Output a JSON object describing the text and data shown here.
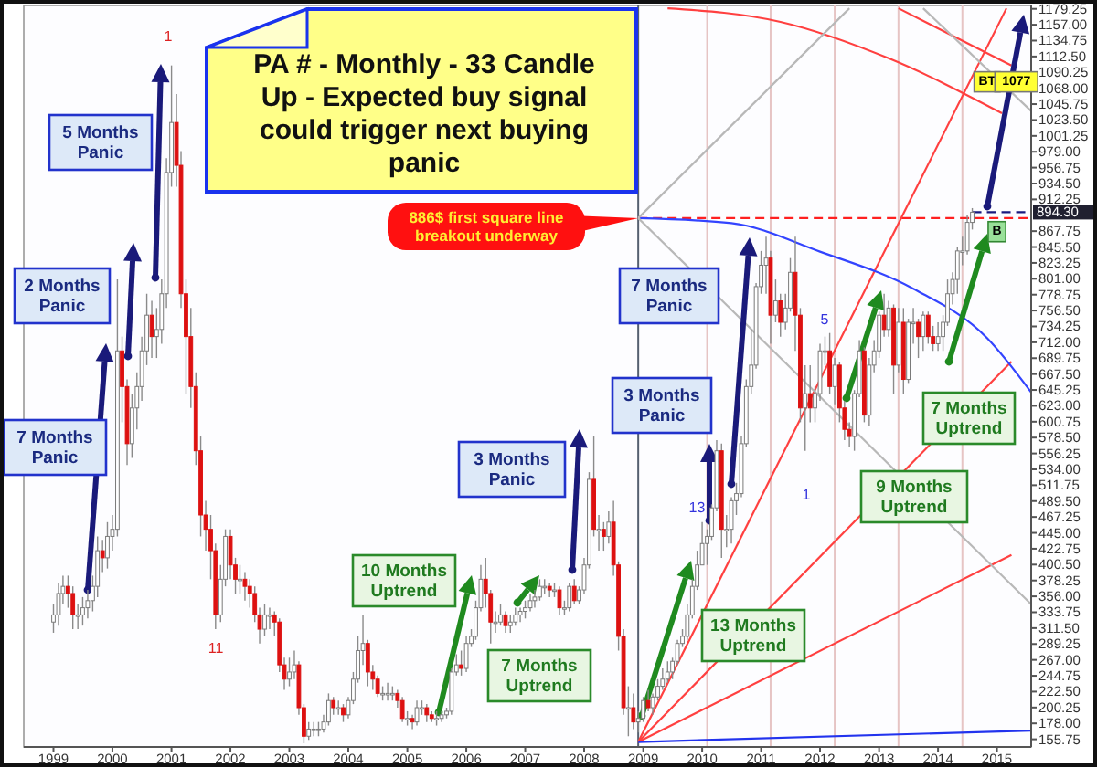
{
  "chart_data": {
    "type": "candlestick",
    "title": "PA # - Monthly - 33 Candle Up - Expected buy signal could trigger next buying panic",
    "x": [
      "1999-01",
      "1999-02",
      "1999-03",
      "1999-04",
      "1999-05",
      "1999-06",
      "1999-07",
      "1999-08",
      "1999-09",
      "1999-10",
      "1999-11",
      "1999-12",
      "2000-01",
      "2000-02",
      "2000-03",
      "2000-04",
      "2000-05",
      "2000-06",
      "2000-07",
      "2000-08",
      "2000-09",
      "2000-10",
      "2000-11",
      "2000-12",
      "2001-01",
      "2001-02",
      "2001-03",
      "2001-04",
      "2001-05",
      "2001-06",
      "2001-07",
      "2001-08",
      "2001-09",
      "2001-10",
      "2001-11",
      "2001-12",
      "2002-01",
      "2002-02",
      "2002-03",
      "2002-04",
      "2002-05",
      "2002-06",
      "2002-07",
      "2002-08",
      "2002-09",
      "2002-10",
      "2002-11",
      "2002-12",
      "2003-01",
      "2003-02",
      "2003-03",
      "2003-04",
      "2003-05",
      "2003-06",
      "2003-07",
      "2003-08",
      "2003-09",
      "2003-10",
      "2003-11",
      "2003-12",
      "2004-01",
      "2004-02",
      "2004-03",
      "2004-04",
      "2004-05",
      "2004-06",
      "2004-07",
      "2004-08",
      "2004-09",
      "2004-10",
      "2004-11",
      "2004-12",
      "2005-01",
      "2005-02",
      "2005-03",
      "2005-04",
      "2005-05",
      "2005-06",
      "2005-07",
      "2005-08",
      "2005-09",
      "2005-10",
      "2005-11",
      "2005-12",
      "2006-01",
      "2006-02",
      "2006-03",
      "2006-04",
      "2006-05",
      "2006-06",
      "2006-07",
      "2006-08",
      "2006-09",
      "2006-10",
      "2006-11",
      "2006-12",
      "2007-01",
      "2007-02",
      "2007-03",
      "2007-04",
      "2007-05",
      "2007-06",
      "2007-07",
      "2007-08",
      "2007-09",
      "2007-10",
      "2007-11",
      "2007-12",
      "2008-01",
      "2008-02",
      "2008-03",
      "2008-04",
      "2008-05",
      "2008-06",
      "2008-07",
      "2008-08",
      "2008-09",
      "2008-10",
      "2008-11",
      "2008-12",
      "2009-01",
      "2009-02",
      "2009-03",
      "2009-04",
      "2009-05",
      "2009-06",
      "2009-07",
      "2009-08",
      "2009-09",
      "2009-10",
      "2009-11",
      "2009-12",
      "2010-01",
      "2010-02",
      "2010-03",
      "2010-04",
      "2010-05",
      "2010-06",
      "2010-07",
      "2010-08",
      "2010-09",
      "2010-10",
      "2010-11",
      "2010-12",
      "2011-01",
      "2011-02",
      "2011-03",
      "2011-04",
      "2011-05",
      "2011-06",
      "2011-07",
      "2011-08",
      "2011-09",
      "2011-10",
      "2011-11",
      "2011-12",
      "2012-01",
      "2012-02",
      "2012-03",
      "2012-04",
      "2012-05",
      "2012-06",
      "2012-07",
      "2012-08",
      "2012-09",
      "2012-10",
      "2012-11",
      "2012-12",
      "2013-01",
      "2013-02",
      "2013-03",
      "2013-04",
      "2013-05",
      "2013-06",
      "2013-07",
      "2013-08",
      "2013-09",
      "2013-10",
      "2013-11",
      "2013-12",
      "2014-01",
      "2014-02",
      "2014-03",
      "2014-04",
      "2014-05",
      "2014-06",
      "2014-07",
      "2014-08"
    ],
    "ohlc": [
      [
        320,
        345,
        305,
        330
      ],
      [
        330,
        375,
        315,
        360
      ],
      [
        360,
        385,
        345,
        370
      ],
      [
        370,
        385,
        340,
        360
      ],
      [
        360,
        370,
        310,
        330
      ],
      [
        330,
        345,
        310,
        330
      ],
      [
        330,
        355,
        315,
        340
      ],
      [
        340,
        365,
        325,
        350
      ],
      [
        350,
        385,
        335,
        370
      ],
      [
        370,
        440,
        355,
        420
      ],
      [
        420,
        435,
        390,
        410
      ],
      [
        410,
        460,
        395,
        440
      ],
      [
        440,
        470,
        420,
        450
      ],
      [
        450,
        800,
        440,
        700
      ],
      [
        700,
        720,
        600,
        650
      ],
      [
        650,
        660,
        540,
        570
      ],
      [
        570,
        640,
        550,
        620
      ],
      [
        620,
        670,
        590,
        650
      ],
      [
        650,
        720,
        630,
        700
      ],
      [
        700,
        780,
        680,
        750
      ],
      [
        750,
        770,
        690,
        720
      ],
      [
        720,
        760,
        690,
        730
      ],
      [
        730,
        800,
        710,
        780
      ],
      [
        780,
        970,
        760,
        950
      ],
      [
        950,
        1100,
        930,
        1020
      ],
      [
        1020,
        1060,
        930,
        960
      ],
      [
        960,
        980,
        760,
        780
      ],
      [
        780,
        800,
        640,
        720
      ],
      [
        720,
        760,
        620,
        650
      ],
      [
        650,
        670,
        540,
        560
      ],
      [
        560,
        580,
        440,
        470
      ],
      [
        470,
        490,
        420,
        450
      ],
      [
        450,
        470,
        380,
        420
      ],
      [
        420,
        430,
        310,
        330
      ],
      [
        330,
        400,
        320,
        380
      ],
      [
        380,
        450,
        370,
        440
      ],
      [
        440,
        450,
        380,
        400
      ],
      [
        400,
        410,
        360,
        380
      ],
      [
        380,
        400,
        360,
        380
      ],
      [
        380,
        390,
        350,
        370
      ],
      [
        370,
        380,
        340,
        360
      ],
      [
        360,
        370,
        320,
        330
      ],
      [
        330,
        340,
        290,
        310
      ],
      [
        310,
        345,
        300,
        330
      ],
      [
        330,
        340,
        310,
        330
      ],
      [
        330,
        335,
        300,
        320
      ],
      [
        320,
        325,
        250,
        260
      ],
      [
        260,
        270,
        225,
        240
      ],
      [
        240,
        270,
        230,
        250
      ],
      [
        250,
        280,
        240,
        260
      ],
      [
        260,
        265,
        190,
        200
      ],
      [
        200,
        205,
        150,
        160
      ],
      [
        160,
        180,
        155,
        170
      ],
      [
        170,
        180,
        160,
        170
      ],
      [
        170,
        180,
        160,
        170
      ],
      [
        170,
        190,
        165,
        180
      ],
      [
        180,
        220,
        175,
        210
      ],
      [
        210,
        215,
        190,
        200
      ],
      [
        200,
        210,
        190,
        200
      ],
      [
        200,
        205,
        180,
        190
      ],
      [
        190,
        215,
        185,
        210
      ],
      [
        210,
        250,
        205,
        240
      ],
      [
        240,
        300,
        235,
        280
      ],
      [
        280,
        330,
        260,
        290
      ],
      [
        290,
        295,
        230,
        250
      ],
      [
        250,
        260,
        225,
        240
      ],
      [
        240,
        245,
        215,
        220
      ],
      [
        220,
        230,
        210,
        220
      ],
      [
        220,
        235,
        210,
        220
      ],
      [
        220,
        230,
        210,
        220
      ],
      [
        220,
        225,
        200,
        210
      ],
      [
        210,
        215,
        180,
        185
      ],
      [
        185,
        195,
        175,
        185
      ],
      [
        185,
        190,
        170,
        180
      ],
      [
        180,
        210,
        175,
        200
      ],
      [
        200,
        210,
        190,
        200
      ],
      [
        200,
        205,
        180,
        190
      ],
      [
        190,
        195,
        180,
        185
      ],
      [
        185,
        195,
        175,
        185
      ],
      [
        185,
        195,
        180,
        190
      ],
      [
        190,
        200,
        185,
        195
      ],
      [
        195,
        255,
        190,
        250
      ],
      [
        250,
        275,
        245,
        260
      ],
      [
        260,
        280,
        245,
        255
      ],
      [
        255,
        300,
        250,
        290
      ],
      [
        290,
        310,
        285,
        300
      ],
      [
        300,
        350,
        295,
        340
      ],
      [
        340,
        400,
        335,
        380
      ],
      [
        380,
        410,
        340,
        360
      ],
      [
        360,
        365,
        290,
        320
      ],
      [
        320,
        335,
        305,
        320
      ],
      [
        320,
        345,
        315,
        330
      ],
      [
        330,
        335,
        305,
        315
      ],
      [
        315,
        330,
        305,
        320
      ],
      [
        320,
        340,
        315,
        330
      ],
      [
        330,
        340,
        320,
        335
      ],
      [
        335,
        350,
        325,
        340
      ],
      [
        340,
        360,
        335,
        350
      ],
      [
        350,
        365,
        340,
        355
      ],
      [
        355,
        380,
        350,
        370
      ],
      [
        370,
        380,
        360,
        370
      ],
      [
        370,
        375,
        355,
        365
      ],
      [
        365,
        375,
        355,
        365
      ],
      [
        365,
        370,
        330,
        340
      ],
      [
        340,
        350,
        330,
        340
      ],
      [
        340,
        375,
        335,
        370
      ],
      [
        370,
        380,
        345,
        350
      ],
      [
        350,
        370,
        345,
        365
      ],
      [
        365,
        410,
        360,
        400
      ],
      [
        400,
        530,
        395,
        520
      ],
      [
        520,
        580,
        440,
        450
      ],
      [
        450,
        470,
        420,
        450
      ],
      [
        450,
        460,
        420,
        440
      ],
      [
        440,
        475,
        430,
        460
      ],
      [
        460,
        490,
        385,
        400
      ],
      [
        400,
        405,
        280,
        300
      ],
      [
        300,
        310,
        190,
        200
      ],
      [
        200,
        230,
        160,
        200
      ],
      [
        200,
        220,
        170,
        180
      ],
      [
        180,
        195,
        165,
        185
      ],
      [
        185,
        215,
        180,
        210
      ],
      [
        210,
        225,
        195,
        200
      ],
      [
        200,
        220,
        190,
        215
      ],
      [
        215,
        240,
        210,
        230
      ],
      [
        230,
        255,
        225,
        240
      ],
      [
        240,
        265,
        235,
        250
      ],
      [
        250,
        270,
        240,
        265
      ],
      [
        265,
        295,
        260,
        290
      ],
      [
        290,
        310,
        285,
        300
      ],
      [
        300,
        345,
        295,
        330
      ],
      [
        330,
        380,
        325,
        370
      ],
      [
        370,
        420,
        365,
        400
      ],
      [
        400,
        460,
        400,
        430
      ],
      [
        430,
        450,
        400,
        440
      ],
      [
        440,
        485,
        435,
        480
      ],
      [
        480,
        575,
        475,
        560
      ],
      [
        560,
        570,
        410,
        450
      ],
      [
        450,
        470,
        425,
        450
      ],
      [
        450,
        495,
        430,
        490
      ],
      [
        490,
        515,
        470,
        500
      ],
      [
        500,
        580,
        495,
        570
      ],
      [
        570,
        660,
        565,
        650
      ],
      [
        650,
        730,
        640,
        680
      ],
      [
        680,
        795,
        675,
        790
      ],
      [
        790,
        840,
        780,
        820
      ],
      [
        820,
        860,
        780,
        830
      ],
      [
        830,
        840,
        710,
        750
      ],
      [
        750,
        800,
        740,
        770
      ],
      [
        770,
        780,
        720,
        740
      ],
      [
        740,
        780,
        730,
        760
      ],
      [
        760,
        830,
        755,
        810
      ],
      [
        810,
        860,
        700,
        750
      ],
      [
        750,
        760,
        600,
        620
      ],
      [
        620,
        680,
        560,
        640
      ],
      [
        640,
        680,
        600,
        620
      ],
      [
        620,
        650,
        600,
        640
      ],
      [
        640,
        710,
        630,
        700
      ],
      [
        700,
        720,
        680,
        700
      ],
      [
        700,
        725,
        640,
        650
      ],
      [
        650,
        690,
        625,
        680
      ],
      [
        680,
        685,
        600,
        620
      ],
      [
        620,
        630,
        575,
        590
      ],
      [
        590,
        600,
        565,
        580
      ],
      [
        580,
        645,
        560,
        640
      ],
      [
        640,
        715,
        635,
        700
      ],
      [
        700,
        705,
        600,
        610
      ],
      [
        610,
        690,
        595,
        680
      ],
      [
        680,
        715,
        670,
        700
      ],
      [
        700,
        755,
        690,
        750
      ],
      [
        750,
        780,
        720,
        730
      ],
      [
        730,
        770,
        720,
        760
      ],
      [
        760,
        765,
        640,
        680
      ],
      [
        680,
        760,
        670,
        740
      ],
      [
        740,
        760,
        640,
        660
      ],
      [
        660,
        745,
        655,
        740
      ],
      [
        740,
        760,
        710,
        740
      ],
      [
        740,
        745,
        690,
        720
      ],
      [
        720,
        755,
        700,
        750
      ],
      [
        750,
        755,
        710,
        720
      ],
      [
        720,
        735,
        700,
        710
      ],
      [
        710,
        740,
        700,
        720
      ],
      [
        720,
        750,
        700,
        740
      ],
      [
        740,
        800,
        735,
        780
      ],
      [
        780,
        810,
        765,
        800
      ],
      [
        800,
        845,
        780,
        840
      ],
      [
        840,
        860,
        820,
        840
      ],
      [
        840,
        890,
        835,
        880
      ],
      [
        880,
        900,
        870,
        894.3
      ]
    ],
    "series": [
      {
        "type": "line",
        "color": "#ff2020",
        "line_style": "dashed",
        "x": [
          "2008-12",
          "2015-08"
        ],
        "values": [
          886,
          886
        ]
      },
      {
        "type": "line",
        "color": "#ff4040",
        "x": [
          "2008-12",
          "2015-03"
        ],
        "values": [
          152,
          1180
        ]
      },
      {
        "type": "line",
        "color": "#ff4040",
        "x": [
          "2008-12",
          "2015-04"
        ],
        "values": [
          152,
          685
        ]
      },
      {
        "type": "line",
        "color": "#ff4040",
        "x": [
          "2008-12",
          "2015-04"
        ],
        "values": [
          152,
          414
        ]
      },
      {
        "type": "line",
        "color": "#2233ee",
        "x": [
          "2008-12",
          "2015-08"
        ],
        "values": [
          152,
          168
        ]
      },
      {
        "type": "line",
        "color": "#ff4040",
        "x": [
          "2009-06",
          "2011-05",
          "2013-03",
          "2015-02"
        ],
        "values": [
          1180,
          1161,
          1110,
          1033
        ]
      },
      {
        "type": "line",
        "color": "#ff4040",
        "x": [
          "2013-05",
          "2015-04"
        ],
        "values": [
          1180,
          1100
        ]
      },
      {
        "type": "line",
        "color": "#3344ff",
        "x": [
          "2008-12",
          "2010-07",
          "2012-01",
          "2013-08",
          "2014-11",
          "2015-08"
        ],
        "values": [
          886,
          879,
          839,
          787,
          718,
          642
        ]
      },
      {
        "type": "line",
        "color": "#b8b8b8",
        "x": [
          "2008-12",
          "2012-07"
        ],
        "values": [
          886,
          1180
        ]
      },
      {
        "type": "line",
        "color": "#b8b8b8",
        "x": [
          "2008-12",
          "2015-08"
        ],
        "values": [
          886,
          345
        ]
      },
      {
        "type": "line",
        "color": "#b8b8b8",
        "x": [
          "2013-10",
          "2015-08"
        ],
        "values": [
          1180,
          1036
        ]
      }
    ],
    "ref_lines": [
      {
        "axis": "x",
        "value": "2008-12",
        "color": "#556070"
      },
      {
        "axis": "x",
        "value": "2010-02",
        "color": "#e6c4c4"
      },
      {
        "axis": "x",
        "value": "2011-03",
        "color": "#e6c4c4"
      },
      {
        "axis": "x",
        "value": "2012-04",
        "color": "#e6c4c4"
      },
      {
        "axis": "x",
        "value": "2013-05",
        "color": "#e6c4c4"
      },
      {
        "axis": "x",
        "value": "2014-06",
        "color": "#e6c4c4"
      },
      {
        "axis": "y",
        "value": 894.3,
        "label": "894.30",
        "color": "#1a1a80"
      }
    ],
    "annotations": [
      "7 Months Panic",
      "2 Months Panic",
      "5 Months Panic",
      "3 Months Panic",
      "3 Months Panic",
      "7 Months Panic",
      "10 Months Uptrend",
      "7 Months Uptrend",
      "13 Months Uptrend",
      "9 Months Uptrend",
      "7 Months Uptrend",
      {
        "text": "886$ first square line breakout underway",
        "x": "2008-12",
        "y": 886
      },
      {
        "text": "BT",
        "x": "2014-11",
        "y": 1077
      },
      {
        "text": "1077",
        "x": "2015-05",
        "y": 1077
      },
      {
        "text": "B",
        "x": "2015-01",
        "y": 867
      },
      "1",
      "11",
      {
        "text": "13",
        "x": "2010-03",
        "y": 480
      },
      "5",
      "1"
    ],
    "xlim": [
      "1998-07",
      "2015-08"
    ],
    "xticks": [
      "1999",
      "2000",
      "2001",
      "2002",
      "2003",
      "2004",
      "2005",
      "2006",
      "2007",
      "2008",
      "2009",
      "2010",
      "2011",
      "2012",
      "2013",
      "2014",
      "2015"
    ],
    "ylim": [
      145,
      1184
    ],
    "yticks": [
      155.75,
      {
        "value": 178,
        "label": "178.00"
      },
      200.25,
      {
        "value": 222.5,
        "label": "222.50"
      },
      244.75,
      {
        "value": 267,
        "label": "267.00"
      },
      289.25,
      {
        "value": 311.5,
        "label": "311.50"
      },
      333.75,
      {
        "value": 356,
        "label": "356.00"
      },
      378.25,
      {
        "value": 400.5,
        "label": "400.50"
      },
      422.75,
      {
        "value": 445,
        "label": "445.00"
      },
      467.25,
      {
        "value": 489.5,
        "label": "489.50"
      },
      511.75,
      {
        "value": 534,
        "label": "534.00"
      },
      556.25,
      {
        "value": 578.5,
        "label": "578.50"
      },
      600.75,
      {
        "value": 623,
        "label": "623.00"
      },
      645.25,
      {
        "value": 667.5,
        "label": "667.50"
      },
      689.75,
      {
        "value": 712,
        "label": "712.00"
      },
      734.25,
      {
        "value": 756.5,
        "label": "756.50"
      },
      778.75,
      {
        "value": 801,
        "label": "801.00"
      },
      823.25,
      {
        "value": 845.5,
        "label": "845.50"
      },
      867.75,
      912.25,
      {
        "value": 934.5,
        "label": "934.50"
      },
      956.75,
      {
        "value": 979,
        "label": "979.00"
      },
      1001.25,
      {
        "value": 1023.5,
        "label": "1023.50"
      },
      1045.75,
      {
        "value": 1068,
        "label": "1068.00"
      },
      1090.25,
      {
        "value": 1112.5,
        "label": "1112.50"
      },
      1134.75,
      {
        "value": 1157,
        "label": "1157.00"
      },
      1179.25
    ]
  }
}
